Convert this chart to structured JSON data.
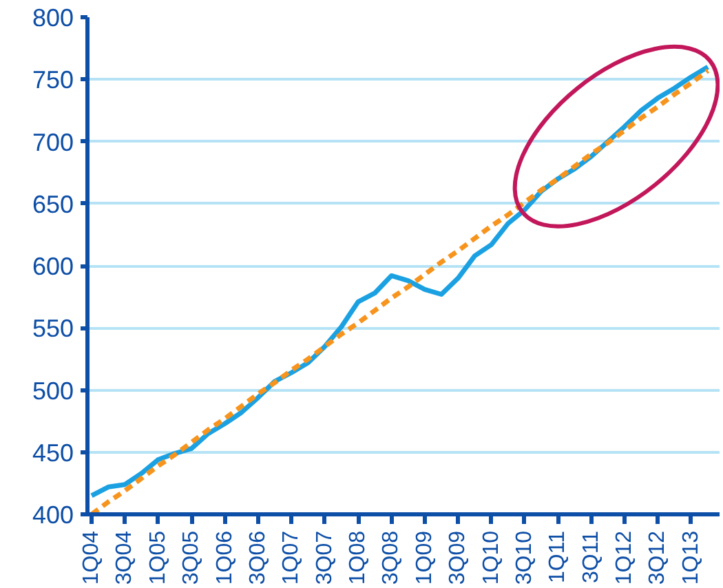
{
  "chart_data": {
    "type": "line",
    "categories": [
      "1Q04",
      null,
      "3Q04",
      null,
      "1Q05",
      null,
      "3Q05",
      null,
      "1Q06",
      null,
      "3Q06",
      null,
      "1Q07",
      null,
      "3Q07",
      null,
      "1Q08",
      null,
      "3Q08",
      null,
      "1Q09",
      null,
      "3Q09",
      null,
      "1Q10",
      null,
      "3Q10",
      null,
      "1Q11",
      null,
      "3Q11",
      null,
      "1Q12",
      null,
      "3Q12",
      null,
      "1Q13",
      null
    ],
    "series": [
      {
        "color": "#1ba1e2",
        "line_style": "solid",
        "values": [
          415,
          422,
          424,
          433,
          444,
          449,
          453,
          465,
          473,
          482,
          494,
          507,
          514,
          522,
          535,
          551,
          571,
          578,
          592,
          588,
          581,
          577,
          590,
          608,
          617,
          634,
          645,
          660,
          670,
          678,
          688,
          700,
          712,
          725,
          735,
          743,
          752,
          760
        ]
      },
      {
        "color": "#f7941d",
        "line_style": "dashed",
        "values": [
          400,
          410,
          419,
          429,
          439,
          448,
          458,
          468,
          477,
          487,
          497,
          506,
          516,
          525,
          535,
          545,
          554,
          564,
          574,
          583,
          593,
          603,
          612,
          622,
          632,
          641,
          651,
          661,
          670,
          680,
          690,
          699,
          709,
          719,
          728,
          738,
          747,
          757
        ]
      }
    ],
    "ylim": [
      400,
      800
    ],
    "yticks": [
      400,
      450,
      500,
      550,
      600,
      650,
      700,
      750,
      800
    ],
    "grid": "y"
  }
}
